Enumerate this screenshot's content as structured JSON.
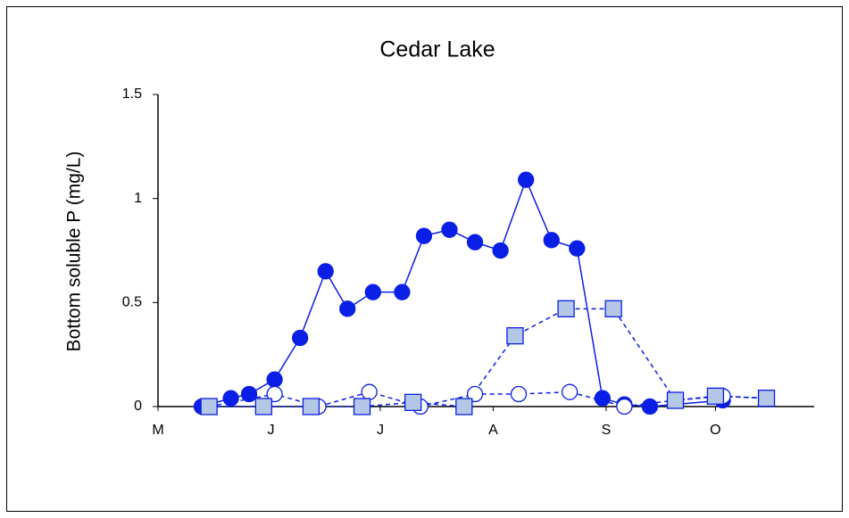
{
  "chart_data": {
    "type": "line",
    "title": "Cedar Lake",
    "ylabel": "Bottom soluble P (mg/L)",
    "xlim": [
      121,
      301.1
    ],
    "xticks": [
      {
        "value": 121,
        "label": "M"
      },
      {
        "value": 152,
        "label": "J"
      },
      {
        "value": 182,
        "label": "J"
      },
      {
        "value": 213,
        "label": "A"
      },
      {
        "value": 244,
        "label": "S"
      },
      {
        "value": 274,
        "label": "O"
      }
    ],
    "ylim": [
      0,
      1.5
    ],
    "yticks": [
      0,
      0.5,
      1,
      1.5
    ],
    "series": [
      {
        "color": "#0a1fe6",
        "marker": "filled-circle",
        "linestyle": "solid",
        "x": [
          133,
          141,
          146,
          153,
          160,
          167,
          173,
          180,
          188,
          194,
          201,
          208,
          215,
          222,
          229,
          236,
          243,
          249,
          256,
          276
        ],
        "values": [
          0,
          0.04,
          0.06,
          0.13,
          0.33,
          0.65,
          0.47,
          0.55,
          0.55,
          0.82,
          0.85,
          0.79,
          0.75,
          1.09,
          0.8,
          0.76,
          0.04,
          0.01,
          0,
          0.03
        ]
      },
      {
        "color": "#0a1fe6",
        "marker": "open-circle",
        "linestyle": "dashed",
        "x": [
          135,
          153,
          165,
          179,
          193,
          208,
          220,
          234,
          249,
          263,
          276,
          288
        ],
        "values": [
          0,
          0.06,
          0,
          0.07,
          0,
          0.06,
          0.06,
          0.07,
          0,
          0.03,
          0.05,
          0.04
        ]
      },
      {
        "color": "#0a1fe6",
        "fill": "#b4c7e7",
        "marker": "square",
        "linestyle": "dashed",
        "x": [
          135,
          150,
          163,
          177,
          191,
          205,
          219,
          233,
          246,
          263,
          274,
          288
        ],
        "values": [
          0,
          0,
          0,
          0,
          0.02,
          0,
          0.34,
          0.47,
          0.47,
          0.03,
          0.05,
          0.04
        ]
      }
    ]
  }
}
